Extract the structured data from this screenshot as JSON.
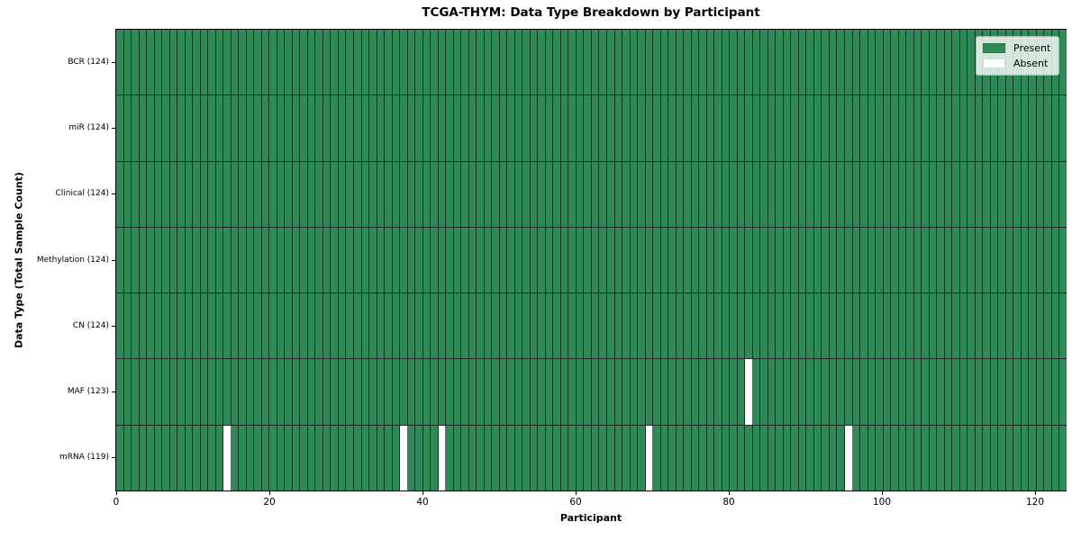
{
  "chart_data": {
    "type": "heatmap",
    "title": "TCGA-THYM: Data Type Breakdown by Participant",
    "xlabel": "Participant",
    "ylabel": "Data Type (Total Sample Count)",
    "xlim": [
      0,
      124
    ],
    "x_ticks": [
      0,
      20,
      40,
      60,
      80,
      100,
      120
    ],
    "n_participants": 124,
    "legend_position": "upper-right",
    "grid": "cell-borders",
    "rows": [
      {
        "label": "BCR (124)",
        "data_type": "BCR",
        "present_count": 124,
        "absent_participants": []
      },
      {
        "label": "miR (124)",
        "data_type": "miR",
        "present_count": 124,
        "absent_participants": []
      },
      {
        "label": "Clinical (124)",
        "data_type": "Clinical",
        "present_count": 124,
        "absent_participants": []
      },
      {
        "label": "Methylation (124)",
        "data_type": "Methylation",
        "present_count": 124,
        "absent_participants": []
      },
      {
        "label": "CN (124)",
        "data_type": "CN",
        "present_count": 124,
        "absent_participants": []
      },
      {
        "label": "MAF (123)",
        "data_type": "MAF",
        "present_count": 123,
        "absent_participants": [
          82
        ]
      },
      {
        "label": "mRNA (119)",
        "data_type": "mRNA",
        "present_count": 119,
        "absent_participants": [
          14,
          37,
          42,
          69,
          95
        ]
      }
    ],
    "legend": [
      {
        "label": "Present",
        "color": "#2e8b57"
      },
      {
        "label": "Absent",
        "color": "#ffffff"
      }
    ],
    "colors": {
      "present": "#2e8b57",
      "absent": "#ffffff",
      "cell_edge": "rgba(0,0,0,0.6)",
      "row_separator": "rgba(0,0,0,0.85)",
      "spine": "#000000",
      "legend_bg": "rgba(255,255,255,0.8)",
      "legend_border": "#b0b0b0"
    }
  }
}
